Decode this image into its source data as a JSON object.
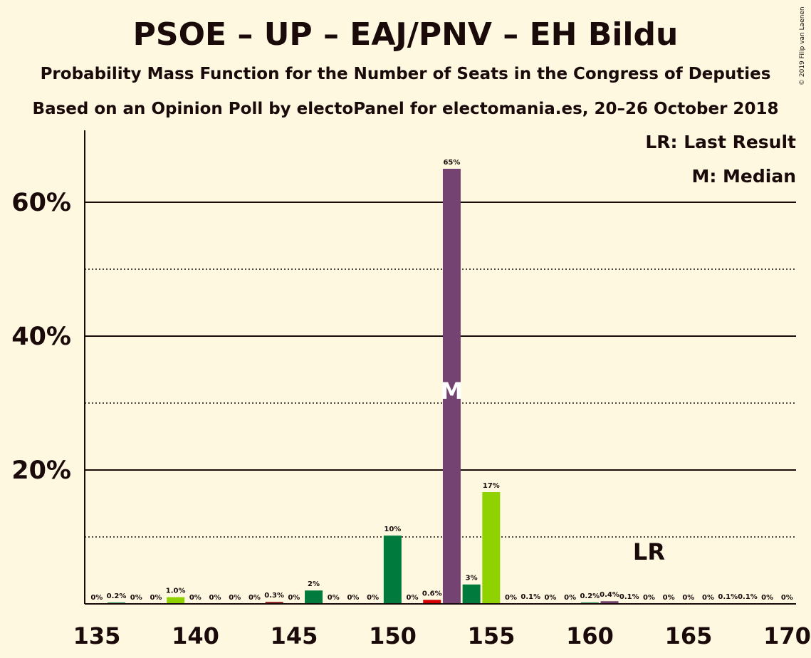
{
  "title": "PSOE – UP – EAJ/PNV – EH Bildu",
  "subtitle": "Probability Mass Function for the Number of Seats in the Congress of Deputies",
  "source": "Based on an Opinion Poll by electoPanel for electomania.es, 20–26 October 2018",
  "copyright": "© 2019 Filip van Laenen",
  "legend": {
    "lr": "LR: Last Result",
    "m": "M: Median"
  },
  "colors": {
    "background": "#fff8e1",
    "median": "#744372",
    "psoe_dark_green": "#007a3d",
    "lime": "#8fd200",
    "red": "#d40000",
    "dark_red": "#8b1a1a"
  },
  "chart_data": {
    "type": "bar",
    "xlabel": "",
    "ylabel": "",
    "xlim": [
      135,
      170
    ],
    "ylim": [
      0,
      71
    ],
    "x_ticks": [
      "135",
      "140",
      "145",
      "150",
      "155",
      "160",
      "165",
      "170"
    ],
    "y_ticks": [
      {
        "value": 20,
        "label": "20%",
        "solid": true
      },
      {
        "value": 40,
        "label": "40%",
        "solid": true
      },
      {
        "value": 60,
        "label": "60%",
        "solid": true
      }
    ],
    "y_dotted": [
      10,
      30,
      50
    ],
    "bars": [
      {
        "x": 136,
        "value": 0,
        "label": "0%",
        "color": "#007a3d"
      },
      {
        "x": 137,
        "value": 0.2,
        "label": "0.2%",
        "color": "#007a3d"
      },
      {
        "x": 138,
        "value": 0,
        "label": "0%",
        "color": "#007a3d"
      },
      {
        "x": 139,
        "value": 0,
        "label": "0%",
        "color": "#007a3d"
      },
      {
        "x": 140,
        "value": 1.0,
        "label": "1.0%",
        "color": "#8fd200"
      },
      {
        "x": 141,
        "value": 0,
        "label": "0%",
        "color": "#007a3d"
      },
      {
        "x": 142,
        "value": 0,
        "label": "0%",
        "color": "#007a3d"
      },
      {
        "x": 143,
        "value": 0,
        "label": "0%",
        "color": "#007a3d"
      },
      {
        "x": 144,
        "value": 0,
        "label": "0%",
        "color": "#007a3d"
      },
      {
        "x": 145,
        "value": 0.3,
        "label": "0.3%",
        "color": "#8b1a1a"
      },
      {
        "x": 146,
        "value": 0,
        "label": "0%",
        "color": "#007a3d"
      },
      {
        "x": 147,
        "value": 2,
        "label": "2%",
        "color": "#007a3d"
      },
      {
        "x": 148,
        "value": 0,
        "label": "0%",
        "color": "#007a3d"
      },
      {
        "x": 149,
        "value": 0,
        "label": "0%",
        "color": "#007a3d"
      },
      {
        "x": 150,
        "value": 0,
        "label": "0%",
        "color": "#007a3d"
      },
      {
        "x": 151,
        "value": 10.2,
        "label": "10%",
        "color": "#007a3d"
      },
      {
        "x": 152,
        "value": 0,
        "label": "0%",
        "color": "#007a3d"
      },
      {
        "x": 153,
        "value": 0.6,
        "label": "0.6%",
        "color": "#d40000"
      },
      {
        "x": 154,
        "value": 65,
        "label": "65%",
        "color": "#744372"
      },
      {
        "x": 155,
        "value": 2.9,
        "label": "3%",
        "color": "#007a3d"
      },
      {
        "x": 156,
        "value": 16.7,
        "label": "17%",
        "color": "#8fd200"
      },
      {
        "x": 157,
        "value": 0,
        "label": "0%",
        "color": "#007a3d"
      },
      {
        "x": 158,
        "value": 0.1,
        "label": "0.1%",
        "color": "#007a3d"
      },
      {
        "x": 159,
        "value": 0,
        "label": "0%",
        "color": "#007a3d"
      },
      {
        "x": 160,
        "value": 0,
        "label": "0%",
        "color": "#007a3d"
      },
      {
        "x": 161,
        "value": 0.2,
        "label": "0.2%",
        "color": "#007a3d"
      },
      {
        "x": 162,
        "value": 0.4,
        "label": "0.4%",
        "color": "#744372"
      },
      {
        "x": 163,
        "value": 0.1,
        "label": "0.1%",
        "color": "#007a3d"
      },
      {
        "x": 164,
        "value": 0,
        "label": "0%",
        "color": "#007a3d"
      },
      {
        "x": 165,
        "value": 0,
        "label": "0%",
        "color": "#007a3d"
      },
      {
        "x": 166,
        "value": 0,
        "label": "0%",
        "color": "#007a3d"
      },
      {
        "x": 167,
        "value": 0,
        "label": "0%",
        "color": "#007a3d"
      },
      {
        "x": 168,
        "value": 0.1,
        "label": "0.1%",
        "color": "#007a3d"
      },
      {
        "x": 169,
        "value": 0.1,
        "label": "0.1%",
        "color": "#007a3d"
      },
      {
        "x": 170,
        "value": 0,
        "label": "0%",
        "color": "#007a3d"
      },
      {
        "x": 171,
        "value": 0,
        "label": "0%",
        "color": "#007a3d"
      }
    ],
    "median": {
      "x": 154,
      "label": "M"
    },
    "last_result": {
      "x": 164,
      "label": "LR"
    }
  }
}
